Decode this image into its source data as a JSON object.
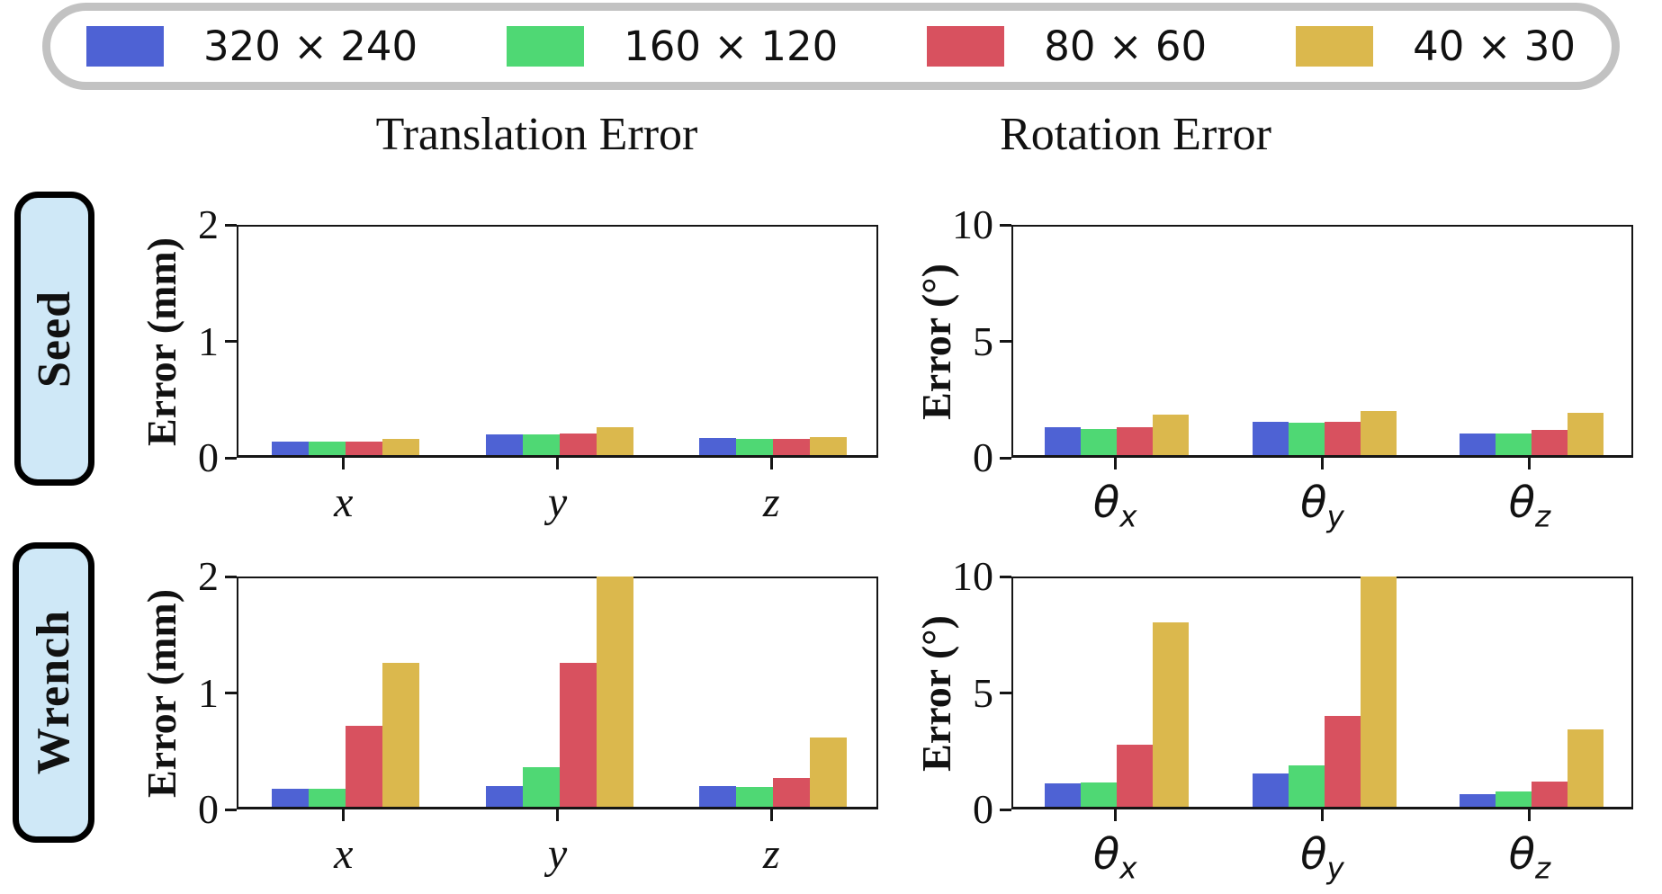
{
  "legend": {
    "border_color": "#c2c2c2",
    "items": [
      {
        "label": "320 × 240",
        "color": "#4e62d4"
      },
      {
        "label": "160 × 120",
        "color": "#4fd874"
      },
      {
        "label": "80 × 60",
        "color": "#d8515f"
      },
      {
        "label": "40 × 30",
        "color": "#dbb84d"
      }
    ]
  },
  "columns": [
    {
      "title": "Translation Error"
    },
    {
      "title": "Rotation Error"
    }
  ],
  "rows": [
    {
      "label": "Seed",
      "bg": "#cfe8f7"
    },
    {
      "label": "Wrench",
      "bg": "#cfe8f7"
    }
  ],
  "chart_data": [
    {
      "id": "seed-translation",
      "type": "bar",
      "row": "Seed",
      "title": "Translation Error",
      "ylabel": "Error (mm)",
      "ylim": [
        0,
        2
      ],
      "yticks": [
        0,
        1,
        2
      ],
      "categories": [
        "x",
        "y",
        "z"
      ],
      "grid": false,
      "series": [
        {
          "name": "320 × 240",
          "color": "#4e62d4",
          "values": [
            0.12,
            0.18,
            0.15
          ]
        },
        {
          "name": "160 × 120",
          "color": "#4fd874",
          "values": [
            0.12,
            0.18,
            0.14
          ]
        },
        {
          "name": "80 × 60",
          "color": "#d8515f",
          "values": [
            0.12,
            0.19,
            0.14
          ]
        },
        {
          "name": "40 × 30",
          "color": "#dbb84d",
          "values": [
            0.14,
            0.24,
            0.16
          ]
        }
      ]
    },
    {
      "id": "seed-rotation",
      "type": "bar",
      "row": "Seed",
      "title": "Rotation Error",
      "ylabel": "Error (°)",
      "ylim": [
        0,
        10
      ],
      "yticks": [
        0,
        5,
        10
      ],
      "categories": [
        "θ_x",
        "θ_y",
        "θ_z"
      ],
      "grid": false,
      "series": [
        {
          "name": "320 × 240",
          "color": "#4e62d4",
          "values": [
            1.2,
            1.45,
            0.95
          ]
        },
        {
          "name": "160 × 120",
          "color": "#4fd874",
          "values": [
            1.15,
            1.4,
            0.95
          ]
        },
        {
          "name": "80 × 60",
          "color": "#d8515f",
          "values": [
            1.2,
            1.45,
            1.1
          ]
        },
        {
          "name": "40 × 30",
          "color": "#dbb84d",
          "values": [
            1.75,
            1.9,
            1.85
          ]
        }
      ]
    },
    {
      "id": "wrench-translation",
      "type": "bar",
      "row": "Wrench",
      "title": "Translation Error",
      "ylabel": "Error (mm)",
      "ylim": [
        0,
        2
      ],
      "yticks": [
        0,
        1,
        2
      ],
      "categories": [
        "x",
        "y",
        "z"
      ],
      "grid": false,
      "series": [
        {
          "name": "320 × 240",
          "color": "#4e62d4",
          "values": [
            0.16,
            0.18,
            0.18
          ]
        },
        {
          "name": "160 × 120",
          "color": "#4fd874",
          "values": [
            0.16,
            0.34,
            0.17
          ]
        },
        {
          "name": "80 × 60",
          "color": "#d8515f",
          "values": [
            0.7,
            1.25,
            0.25
          ]
        },
        {
          "name": "40 × 30",
          "color": "#dbb84d",
          "values": [
            1.25,
            2.0,
            0.6
          ]
        }
      ]
    },
    {
      "id": "wrench-rotation",
      "type": "bar",
      "row": "Wrench",
      "title": "Rotation Error",
      "ylabel": "Error (°)",
      "ylim": [
        0,
        10
      ],
      "yticks": [
        0,
        5,
        10
      ],
      "categories": [
        "θ_x",
        "θ_y",
        "θ_z"
      ],
      "grid": false,
      "series": [
        {
          "name": "320 × 240",
          "color": "#4e62d4",
          "values": [
            1.0,
            1.45,
            0.55
          ]
        },
        {
          "name": "160 × 120",
          "color": "#4fd874",
          "values": [
            1.05,
            1.8,
            0.65
          ]
        },
        {
          "name": "80 × 60",
          "color": "#d8515f",
          "values": [
            2.7,
            3.95,
            1.1
          ]
        },
        {
          "name": "40 × 30",
          "color": "#dbb84d",
          "values": [
            8.0,
            10.0,
            3.35
          ]
        }
      ]
    }
  ]
}
